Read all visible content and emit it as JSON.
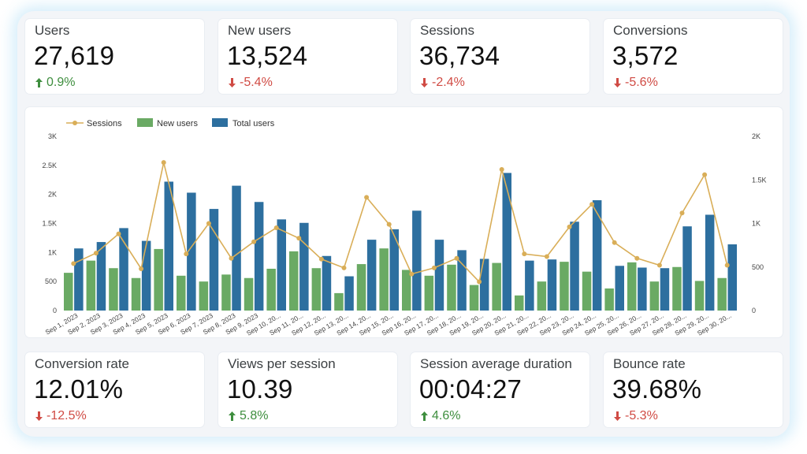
{
  "kpis_top": [
    {
      "label": "Users",
      "value": "27,619",
      "delta": "0.9%",
      "direction": "up"
    },
    {
      "label": "New users",
      "value": "13,524",
      "delta": "-5.4%",
      "direction": "down"
    },
    {
      "label": "Sessions",
      "value": "36,734",
      "delta": "-2.4%",
      "direction": "down"
    },
    {
      "label": "Conversions",
      "value": "3,572",
      "delta": "-5.6%",
      "direction": "down"
    }
  ],
  "kpis_bottom": [
    {
      "label": "Conversion rate",
      "value": "12.01%",
      "delta": "-12.5%",
      "direction": "down"
    },
    {
      "label": "Views per session",
      "value": "10.39",
      "delta": "5.8%",
      "direction": "up"
    },
    {
      "label": "Session average duration",
      "value": "00:04:27",
      "delta": "4.6%",
      "direction": "up"
    },
    {
      "label": "Bounce rate",
      "value": "39.68%",
      "delta": "-5.3%",
      "direction": "down"
    }
  ],
  "colors": {
    "sessions": "#d9ae58",
    "new_users": "#6aaa64",
    "total_users": "#2d6f9f",
    "up": "#3e8e3e",
    "down": "#d04b44"
  },
  "chart_data": {
    "type": "bar",
    "legend": [
      "Sessions",
      "New users",
      "Total users"
    ],
    "legend_position": "top-left",
    "categories": [
      "Sep 1, 2023",
      "Sep 2, 2023",
      "Sep 3, 2023",
      "Sep 4, 2023",
      "Sep 5, 2023",
      "Sep 6, 2023",
      "Sep 7, 2023",
      "Sep 8, 2023",
      "Sep 9, 2023",
      "Sep 10, 20...",
      "Sep 11, 20...",
      "Sep 12, 20...",
      "Sep 13, 20...",
      "Sep 14, 20...",
      "Sep 15, 20...",
      "Sep 16, 20...",
      "Sep 17, 20...",
      "Sep 18, 20...",
      "Sep 19, 20...",
      "Sep 20, 20...",
      "Sep 21, 20...",
      "Sep 22, 20...",
      "Sep 23, 20...",
      "Sep 24, 20...",
      "Sep 25, 20...",
      "Sep 26, 20...",
      "Sep 27, 20...",
      "Sep 28, 20...",
      "Sep 29, 20...",
      "Sep 30, 20..."
    ],
    "series": [
      {
        "name": "New users",
        "type": "bar",
        "axis": "left",
        "values": [
          650,
          860,
          730,
          560,
          1060,
          600,
          500,
          620,
          560,
          720,
          1020,
          730,
          300,
          800,
          1070,
          700,
          600,
          790,
          440,
          820,
          260,
          500,
          840,
          670,
          380,
          830,
          500,
          750,
          510,
          560
        ]
      },
      {
        "name": "Total users",
        "type": "bar",
        "axis": "left",
        "values": [
          1070,
          1180,
          1420,
          1200,
          2220,
          2030,
          1750,
          2150,
          1870,
          1570,
          1510,
          940,
          590,
          1220,
          1400,
          1720,
          1220,
          1040,
          890,
          2370,
          860,
          880,
          1530,
          1900,
          770,
          740,
          730,
          1450,
          1650,
          1140
        ]
      },
      {
        "name": "Sessions",
        "type": "line",
        "axis": "right",
        "values": [
          540,
          660,
          880,
          480,
          1700,
          650,
          1000,
          600,
          790,
          950,
          830,
          590,
          490,
          1300,
          990,
          420,
          490,
          600,
          330,
          1620,
          650,
          620,
          960,
          1220,
          780,
          600,
          520,
          1120,
          1560,
          520
        ]
      }
    ],
    "y_left": {
      "ticks": [
        "0",
        "500",
        "1K",
        "1.5K",
        "2K",
        "2.5K",
        "3K"
      ],
      "max": 3000
    },
    "y_right": {
      "ticks": [
        "0",
        "500",
        "1K",
        "1.5K",
        "2K"
      ],
      "max": 2000
    },
    "grid": false
  }
}
